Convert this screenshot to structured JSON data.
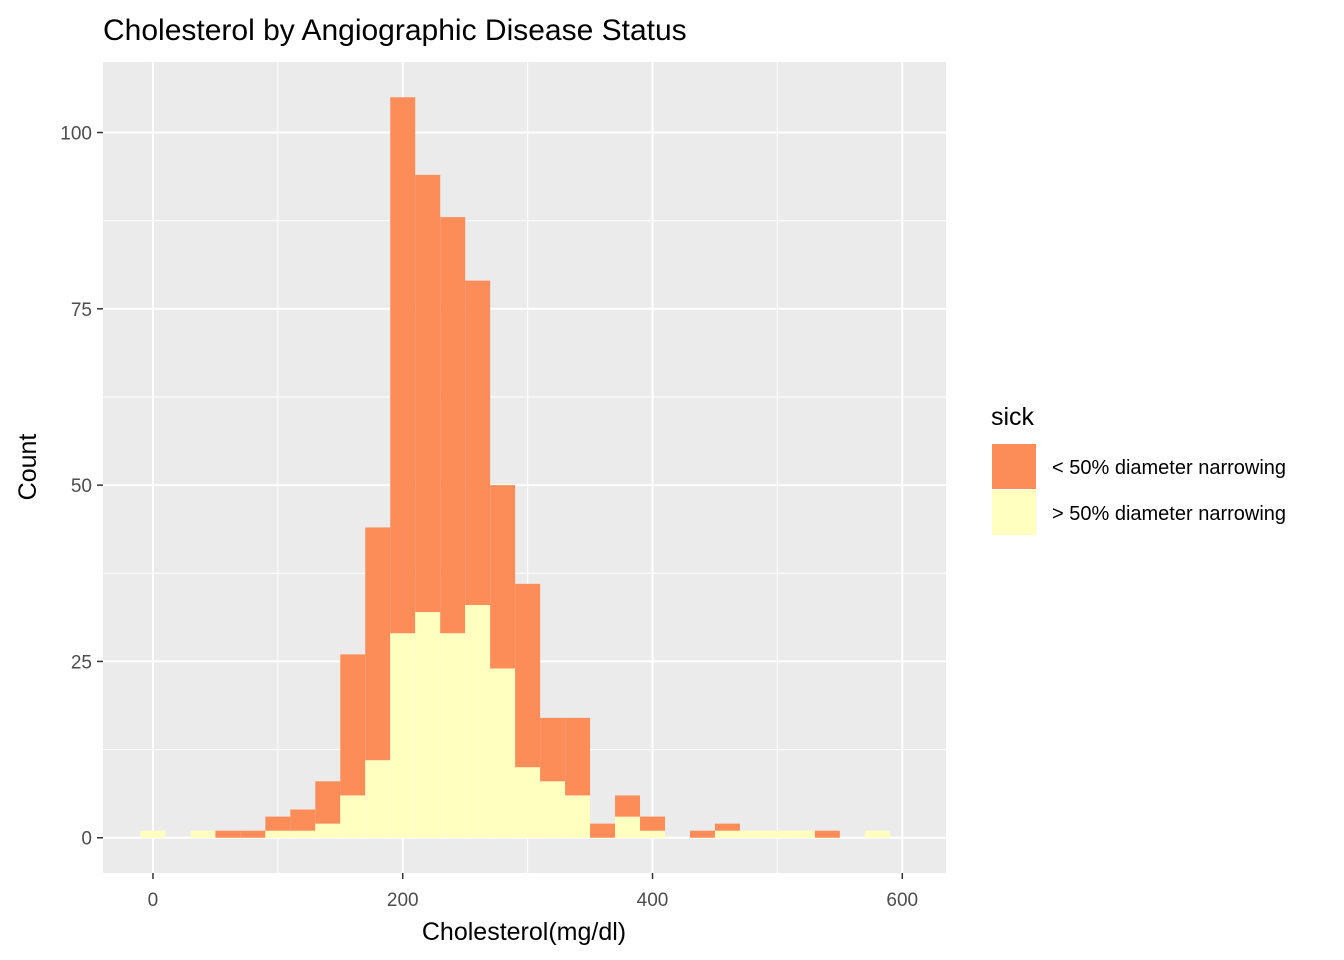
{
  "chart_data": {
    "type": "bar",
    "subtype": "stacked-histogram",
    "title": "Cholesterol by Angiographic Disease Status",
    "xlabel": "Cholesterol(mg/dl)",
    "ylabel": "Count",
    "xlim": [
      -40,
      635
    ],
    "ylim": [
      -5,
      110
    ],
    "x_ticks": [
      0,
      200,
      400,
      600
    ],
    "y_ticks": [
      0,
      25,
      50,
      75,
      100
    ],
    "grid": true,
    "legend": {
      "title": "sick",
      "position": "right",
      "entries": [
        {
          "label": "< 50% diameter narrowing",
          "color": "#FC8D59"
        },
        {
          "label": "> 50% diameter narrowing",
          "color": "#FFFFBF"
        }
      ]
    },
    "bin_width": 20,
    "bins": [
      {
        "x": 0,
        "below": 0,
        "above": 1
      },
      {
        "x": 20,
        "below": 0,
        "above": 0
      },
      {
        "x": 40,
        "below": 0,
        "above": 1
      },
      {
        "x": 60,
        "below": 1,
        "above": 0
      },
      {
        "x": 80,
        "below": 1,
        "above": 0
      },
      {
        "x": 100,
        "below": 2,
        "above": 1
      },
      {
        "x": 120,
        "below": 3,
        "above": 1
      },
      {
        "x": 140,
        "below": 6,
        "above": 2
      },
      {
        "x": 160,
        "below": 20,
        "above": 6
      },
      {
        "x": 180,
        "below": 33,
        "above": 11
      },
      {
        "x": 200,
        "below": 76,
        "above": 29
      },
      {
        "x": 220,
        "below": 62,
        "above": 32
      },
      {
        "x": 240,
        "below": 59,
        "above": 29
      },
      {
        "x": 260,
        "below": 46,
        "above": 33
      },
      {
        "x": 280,
        "below": 26,
        "above": 24
      },
      {
        "x": 300,
        "below": 26,
        "above": 10
      },
      {
        "x": 320,
        "below": 9,
        "above": 8
      },
      {
        "x": 340,
        "below": 11,
        "above": 6
      },
      {
        "x": 360,
        "below": 2,
        "above": 0
      },
      {
        "x": 380,
        "below": 3,
        "above": 3
      },
      {
        "x": 400,
        "below": 2,
        "above": 1
      },
      {
        "x": 420,
        "below": 0,
        "above": 0
      },
      {
        "x": 440,
        "below": 1,
        "above": 0
      },
      {
        "x": 460,
        "below": 1,
        "above": 1
      },
      {
        "x": 480,
        "below": 0,
        "above": 1
      },
      {
        "x": 500,
        "below": 0,
        "above": 1
      },
      {
        "x": 520,
        "below": 0,
        "above": 1
      },
      {
        "x": 540,
        "below": 1,
        "above": 0
      },
      {
        "x": 560,
        "below": 0,
        "above": 0
      },
      {
        "x": 580,
        "below": 0,
        "above": 1
      }
    ]
  }
}
